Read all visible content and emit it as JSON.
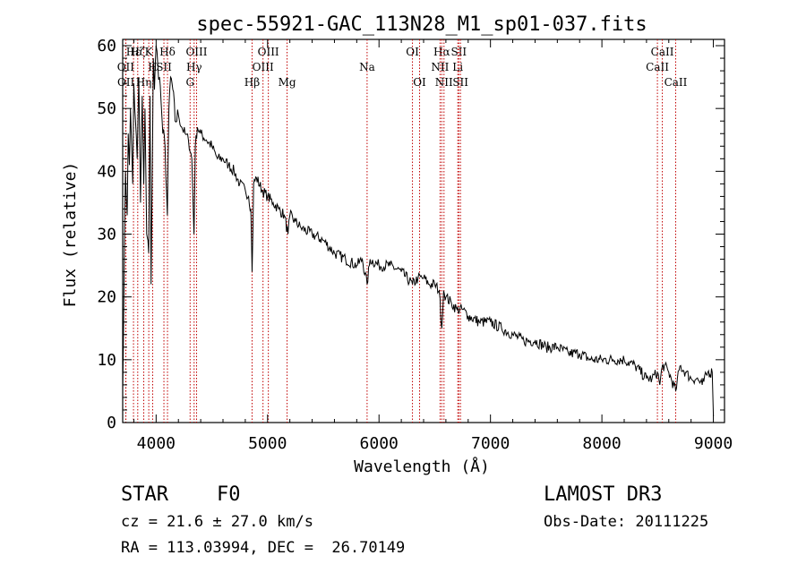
{
  "chart_data": {
    "type": "line",
    "title": "spec-55921-GAC_113N28_M1_sp01-037.fits",
    "xlabel": "Wavelength (Å)",
    "ylabel": "Flux (relative)",
    "xlim": [
      3700,
      9100
    ],
    "ylim": [
      0,
      61
    ],
    "xticks": [
      4000,
      5000,
      6000,
      7000,
      8000,
      9000
    ],
    "xtick_labels": [
      "4000",
      "5000",
      "6000",
      "7000",
      "8000",
      "9000"
    ],
    "yticks": [
      0,
      10,
      20,
      30,
      40,
      50,
      60
    ],
    "ytick_labels": [
      "0",
      "10",
      "20",
      "30",
      "40",
      "50",
      "60"
    ],
    "series": [
      {
        "name": "flux",
        "x": [
          3700,
          3712,
          3725,
          3740,
          3750,
          3760,
          3770,
          3780,
          3790,
          3800,
          3815,
          3830,
          3845,
          3860,
          3875,
          3889,
          3900,
          3915,
          3933,
          3945,
          3955,
          3968,
          3975,
          3985,
          4000,
          4015,
          4030,
          4045,
          4060,
          4080,
          4101,
          4115,
          4130,
          4150,
          4170,
          4200,
          4230,
          4260,
          4290,
          4320,
          4340,
          4352,
          4370,
          4400,
          4450,
          4500,
          4550,
          4600,
          4650,
          4700,
          4750,
          4800,
          4830,
          4850,
          4861,
          4875,
          4900,
          4950,
          5000,
          5050,
          5100,
          5150,
          5183,
          5200,
          5250,
          5300,
          5400,
          5500,
          5600,
          5700,
          5800,
          5850,
          5893,
          5920,
          6000,
          6100,
          6200,
          6300,
          6350,
          6400,
          6450,
          6500,
          6540,
          6563,
          6580,
          6600,
          6650,
          6700,
          6750,
          6800,
          6900,
          7000,
          7100,
          7200,
          7300,
          7400,
          7500,
          7600,
          7700,
          7800,
          7900,
          8000,
          8100,
          8200,
          8300,
          8400,
          8450,
          8498,
          8520,
          8542,
          8560,
          8600,
          8662,
          8700,
          8750,
          8800,
          8850,
          8900,
          8950,
          8990,
          9000
        ],
        "y": [
          5,
          22,
          40,
          33,
          46,
          41,
          50,
          44,
          38,
          54,
          48,
          42,
          55,
          35,
          52,
          38,
          50,
          30,
          27,
          52,
          22,
          45,
          58,
          53,
          60,
          57,
          55,
          51,
          46,
          44,
          33,
          50,
          55,
          53,
          48,
          49,
          47,
          46,
          45,
          42,
          30,
          44,
          47,
          46,
          45,
          44,
          42,
          42,
          41,
          40,
          38,
          37,
          36,
          34,
          24,
          38,
          39,
          37,
          36,
          35,
          34,
          33,
          30,
          33,
          32,
          31,
          30,
          29,
          27,
          26,
          25,
          26,
          22,
          26,
          25,
          25,
          24,
          22,
          23,
          23,
          22,
          22,
          21,
          15,
          21,
          20,
          19,
          18,
          18,
          17,
          16,
          16,
          15,
          14,
          13,
          13,
          12,
          12,
          11,
          11,
          10,
          10,
          10,
          10,
          9,
          7,
          7,
          8,
          6,
          9,
          9,
          8,
          5,
          9,
          8,
          7,
          7,
          6,
          8,
          8,
          1
        ]
      }
    ],
    "lines": [
      {
        "name": "Hε",
        "x": 3797,
        "row": 0
      },
      {
        "name": "Hζ",
        "x": 3835,
        "row": 0
      },
      {
        "name": "OII",
        "x": 3727,
        "row": 1
      },
      {
        "name": "OII",
        "x": 3729,
        "row": 2
      },
      {
        "name": "Hη",
        "x": 3889,
        "row": 2
      },
      {
        "name": "K",
        "x": 3934,
        "row": 0
      },
      {
        "name": "H",
        "x": 3969,
        "row": 1
      },
      {
        "name": "Hδ",
        "x": 4102,
        "row": 0
      },
      {
        "name": "SII",
        "x": 4070,
        "row": 1
      },
      {
        "name": "OIII",
        "x": 4363,
        "row": 0
      },
      {
        "name": "Hγ",
        "x": 4341,
        "row": 1
      },
      {
        "name": "G",
        "x": 4305,
        "row": 2
      },
      {
        "name": "OIII",
        "x": 5007,
        "row": 0
      },
      {
        "name": "OIII",
        "x": 4959,
        "row": 1
      },
      {
        "name": "Hβ",
        "x": 4861,
        "row": 2
      },
      {
        "name": "Mg",
        "x": 5175,
        "row": 2
      },
      {
        "name": "Na",
        "x": 5893,
        "row": 1
      },
      {
        "name": "OI",
        "x": 6300,
        "row": 0
      },
      {
        "name": "OI",
        "x": 6364,
        "row": 2
      },
      {
        "name": "Hα",
        "x": 6563,
        "row": 0
      },
      {
        "name": "NII",
        "x": 6548,
        "row": 1
      },
      {
        "name": "NII",
        "x": 6583,
        "row": 2
      },
      {
        "name": "SII",
        "x": 6716,
        "row": 0
      },
      {
        "name": "Li",
        "x": 6707,
        "row": 1
      },
      {
        "name": "SII",
        "x": 6731,
        "row": 2
      },
      {
        "name": "CaII",
        "x": 8542,
        "row": 0
      },
      {
        "name": "CaII",
        "x": 8498,
        "row": 1
      },
      {
        "name": "CaII",
        "x": 8662,
        "row": 2
      }
    ],
    "grid": false,
    "legend": "none"
  },
  "info": {
    "object_type": "STAR",
    "subclass": "F0",
    "survey": "LAMOST DR3",
    "redshift": "cz = 21.6 ± 27.0 km/s",
    "obs_date": "Obs-Date: 20111225",
    "coords": "RA = 113.03994, DEC =  26.70149"
  }
}
